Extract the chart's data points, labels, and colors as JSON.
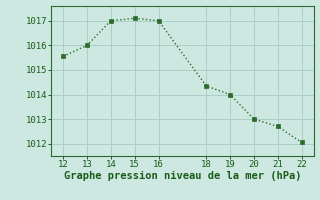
{
  "x": [
    12,
    13,
    14,
    15,
    16,
    18,
    19,
    20,
    21,
    22
  ],
  "y": [
    1015.55,
    1016.0,
    1017.0,
    1017.1,
    1017.0,
    1014.35,
    1014.0,
    1013.0,
    1012.7,
    1012.05
  ],
  "line_color": "#2d6a2d",
  "marker_color": "#2d6a2d",
  "bg_color": "#cce8e0",
  "grid_color": "#aacfc7",
  "xlabel": "Graphe pression niveau de la mer (hPa)",
  "xlabel_color": "#1a5c1a",
  "tick_color": "#1a5c1a",
  "xlim": [
    11.5,
    22.5
  ],
  "ylim": [
    1011.5,
    1017.6
  ],
  "xticks": [
    12,
    13,
    14,
    15,
    16,
    18,
    19,
    20,
    21,
    22
  ],
  "yticks": [
    1012,
    1013,
    1014,
    1015,
    1016,
    1017
  ],
  "axis_line_color": "#2d6a2d",
  "xlabel_fontsize": 7.5,
  "tick_fontsize": 6.5
}
